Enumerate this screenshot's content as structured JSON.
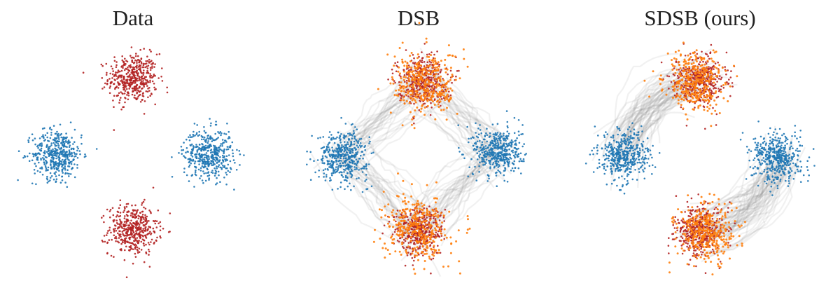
{
  "chart_data": [
    {
      "type": "scatter",
      "title": "Data",
      "xlim": [
        -7,
        7
      ],
      "ylim": [
        -7,
        7
      ],
      "grid": false,
      "axes_visible": false,
      "clusters": [
        {
          "role": "target",
          "color": "#b22222",
          "centers": [
            [
              0,
              4
            ],
            [
              0,
              -4
            ]
          ],
          "std": 0.65,
          "n_per_center": 450
        },
        {
          "role": "source",
          "color": "#1f77b4",
          "centers": [
            [
              -4,
              0
            ],
            [
              4,
              0
            ]
          ],
          "std": 0.65,
          "n_per_center": 450
        }
      ],
      "trajectories": []
    },
    {
      "type": "scatter",
      "title": "DSB",
      "xlim": [
        -7,
        7
      ],
      "ylim": [
        -7,
        7
      ],
      "grid": false,
      "axes_visible": false,
      "clusters": [
        {
          "role": "source",
          "color": "#1f77b4",
          "centers": [
            [
              -4,
              0
            ],
            [
              4.2,
              0.2
            ]
          ],
          "std": 0.65,
          "n_per_center": 450
        },
        {
          "role": "target",
          "color": "#b22222",
          "centers": [
            [
              0.2,
              4
            ],
            [
              0,
              -4
            ]
          ],
          "std": 0.65,
          "n_per_center": 400
        },
        {
          "role": "generated",
          "color": "#ff7f0e",
          "centers": [
            [
              0.4,
              3.8
            ],
            [
              -0.1,
              -3.8
            ]
          ],
          "std": 0.85,
          "n_per_center": 350
        }
      ],
      "trajectories": {
        "color": "#8c8c8c",
        "routes": [
          [
            [
              -4,
              0
            ],
            [
              0.2,
              4
            ]
          ],
          [
            [
              -4,
              0
            ],
            [
              0,
              -4
            ]
          ],
          [
            [
              4.2,
              0.2
            ],
            [
              0.2,
              4
            ]
          ],
          [
            [
              4.2,
              0.2
            ],
            [
              0,
              -4
            ]
          ]
        ],
        "curvature": 0.0,
        "count_per_route": 30
      }
    },
    {
      "type": "scatter",
      "title": "SDSB (ours)",
      "xlim": [
        -7,
        7
      ],
      "ylim": [
        -7,
        7
      ],
      "grid": false,
      "axes_visible": false,
      "clusters": [
        {
          "role": "source",
          "color": "#1f77b4",
          "centers": [
            [
              -4,
              0
            ],
            [
              4.1,
              -0.1
            ]
          ],
          "std": 0.65,
          "n_per_center": 450
        },
        {
          "role": "target",
          "color": "#b22222",
          "centers": [
            [
              0,
              4
            ],
            [
              0,
              -4
            ]
          ],
          "std": 0.65,
          "n_per_center": 400
        },
        {
          "role": "generated",
          "color": "#ff7f0e",
          "centers": [
            [
              -0.3,
              3.9
            ],
            [
              0.3,
              -4.1
            ]
          ],
          "std": 0.75,
          "n_per_center": 350
        }
      ],
      "trajectories": {
        "color": "#8c8c8c",
        "routes": [
          [
            [
              -4,
              0
            ],
            [
              0,
              4
            ]
          ],
          [
            [
              4.1,
              -0.1
            ],
            [
              0,
              -4
            ]
          ]
        ],
        "curvature": 0.55,
        "count_per_route": 60
      }
    }
  ]
}
